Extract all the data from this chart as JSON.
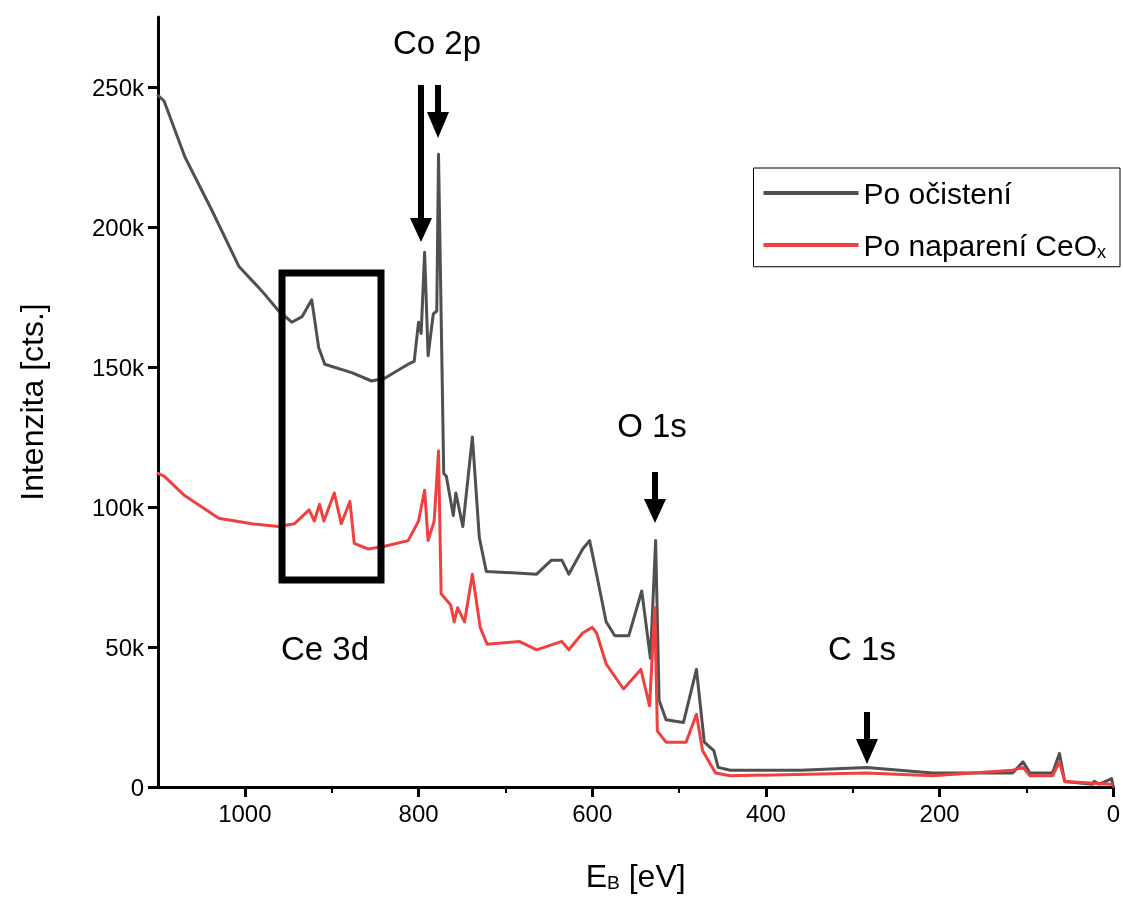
{
  "chart_data": {
    "type": "line",
    "xlabel": "E$_{B}$ [eV]",
    "ylabel": "Intenzita [cts.]",
    "xlim": [
      1100,
      0
    ],
    "xticks": [
      1000,
      800,
      600,
      400,
      200,
      0
    ],
    "ylim": [
      0,
      275000
    ],
    "yticks": [
      0,
      {
        "value": 50000,
        "label": "50k"
      },
      {
        "value": 100000,
        "label": "100k"
      },
      {
        "value": 150000,
        "label": "150k"
      },
      {
        "value": 200000,
        "label": "200k"
      },
      {
        "value": 250000,
        "label": "250k"
      }
    ],
    "grid": false,
    "legend": "top right",
    "marker": "none",
    "line_style": "solid",
    "annotations": [
      "Co 2p",
      "O 1s",
      "C 1s",
      "Ce 3d"
    ],
    "series": [
      {
        "name": "Po očistení",
        "color": "#505050",
        "x": [
          1100,
          1093,
          1069,
          1038,
          1007,
          980,
          961,
          946,
          934,
          923,
          915,
          908,
          877,
          854,
          839,
          812,
          805,
          800,
          797,
          793,
          789,
          783,
          779,
          777,
          771,
          768,
          760,
          757,
          749,
          738,
          730,
          722,
          664,
          647,
          635,
          627,
          611,
          603,
          595,
          584,
          574,
          558,
          543,
          533,
          527,
          523,
          515,
          495,
          480,
          471,
          460,
          455,
          441,
          360,
          284,
          208,
          116,
          104,
          96,
          70,
          62,
          56,
          24,
          22,
          16,
          2,
          0
        ],
        "values": [
          247000,
          245000,
          225000,
          206000,
          186000,
          177000,
          170000,
          166000,
          168000,
          174000,
          157000,
          151000,
          148000,
          145000,
          146000,
          151000,
          152000,
          166000,
          162000,
          191000,
          154000,
          169000,
          170000,
          226000,
          112000,
          111000,
          97000,
          105000,
          93000,
          125000,
          89000,
          77000,
          76000,
          81000,
          81000,
          76000,
          85000,
          88000,
          76000,
          59000,
          54000,
          54000,
          70000,
          46000,
          88000,
          31000,
          24000,
          23000,
          42000,
          16000,
          13000,
          7000,
          6000,
          6000,
          7000,
          5000,
          5000,
          9000,
          5000,
          5000,
          12000,
          2000,
          1000,
          2000,
          1000,
          3000,
          0
        ]
      },
      {
        "name": "Po naparení CeO$_{x}$",
        "color": "#f04040",
        "x": [
          1100,
          1093,
          1069,
          1030,
          992,
          961,
          943,
          926,
          920,
          914,
          909,
          897,
          889,
          879,
          874,
          858,
          839,
          812,
          800,
          793,
          789,
          782,
          777,
          774,
          763,
          759,
          755,
          747,
          738,
          729,
          721,
          684,
          664,
          635,
          627,
          611,
          600,
          595,
          584,
          564,
          544,
          534,
          528,
          525,
          515,
          492,
          480,
          473,
          458,
          441,
          284,
          208,
          116,
          104,
          96,
          70,
          62,
          56,
          2
        ],
        "values": [
          112000,
          111000,
          104000,
          96000,
          94000,
          93000,
          94000,
          99000,
          95000,
          101000,
          95000,
          105000,
          94000,
          102000,
          87000,
          85000,
          86000,
          88000,
          95000,
          106000,
          88000,
          95000,
          120000,
          69000,
          65000,
          59000,
          64000,
          59000,
          76000,
          57000,
          51000,
          52000,
          49000,
          52000,
          49000,
          55000,
          57000,
          55000,
          44000,
          35000,
          42000,
          29000,
          64000,
          20000,
          16000,
          16000,
          26000,
          13000,
          5000,
          4000,
          5000,
          4000,
          6000,
          7000,
          4000,
          4000,
          9000,
          2000,
          1000
        ]
      }
    ]
  }
}
